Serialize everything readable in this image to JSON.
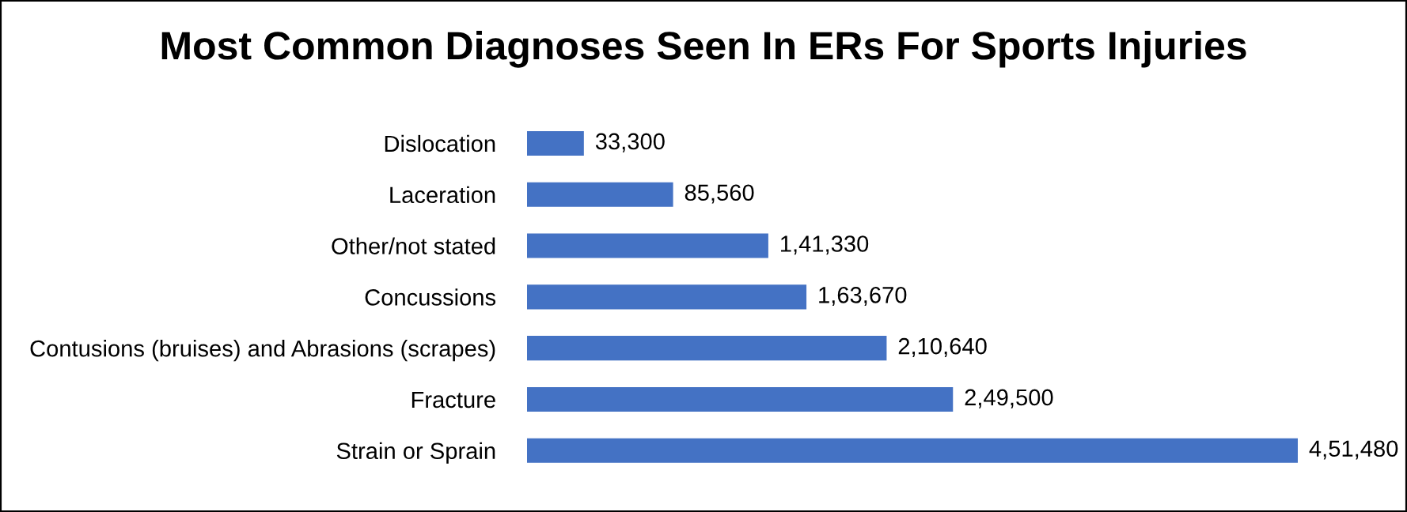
{
  "chart_data": {
    "type": "bar",
    "orientation": "horizontal",
    "title": "Most Common Diagnoses Seen In ERs For Sports Injuries",
    "categories": [
      "Dislocation",
      "Laceration",
      "Other/not stated",
      "Concussions",
      "Contusions (bruises) and Abrasions (scrapes)",
      "Fracture",
      "Strain or Sprain"
    ],
    "values": [
      33300,
      85560,
      141330,
      163670,
      210640,
      249500,
      451480
    ],
    "value_labels": [
      "33,300",
      "85,560",
      "1,41,330",
      "1,63,670",
      "2,10,640",
      "2,49,500",
      "4,51,480"
    ],
    "color": "#4472c4",
    "grid": false,
    "legend": false
  }
}
